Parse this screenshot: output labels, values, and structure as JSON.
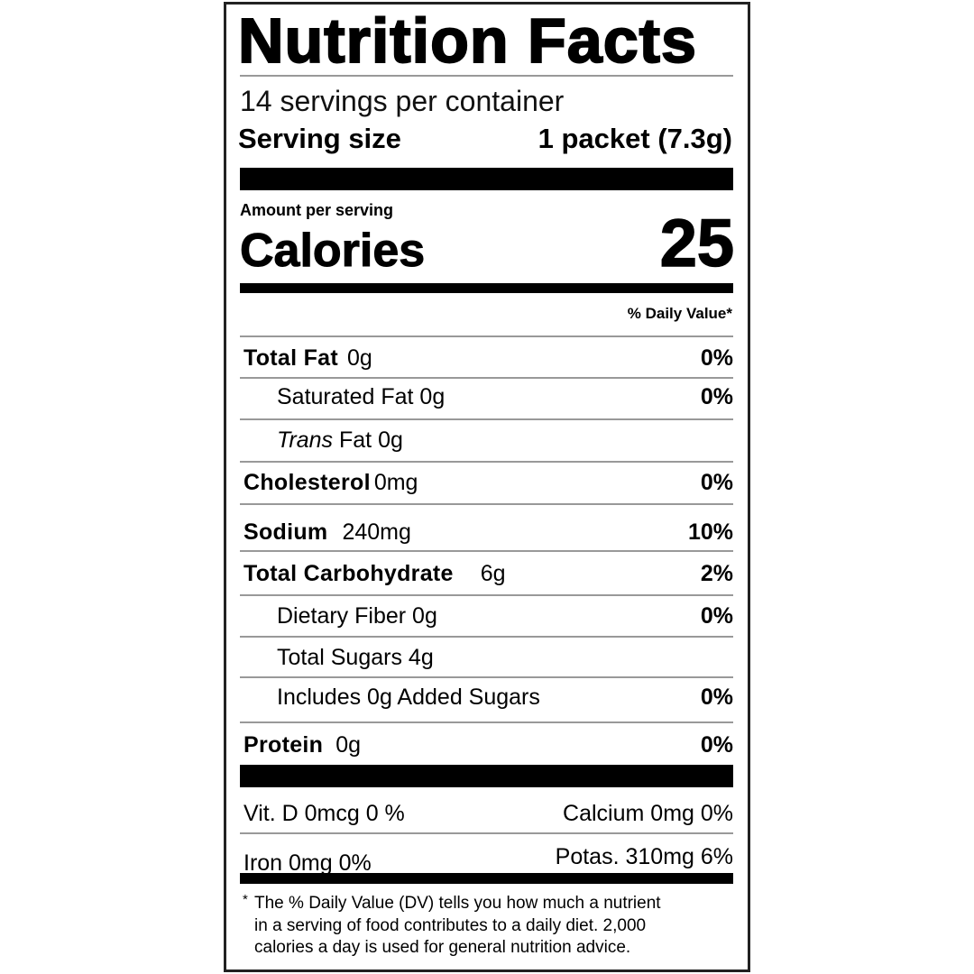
{
  "title": "Nutrition Facts",
  "servings_per_container": "14 servings per container",
  "serving_size": {
    "label": "Serving size",
    "value": "1 packet (7.3g)"
  },
  "amount_per_serving": "Amount per serving",
  "calories": {
    "label": "Calories",
    "value": "25"
  },
  "daily_value_header": "% Daily Value*",
  "nutrients": [
    {
      "name": "Total Fat",
      "amount": "0g",
      "dv": "0%"
    },
    {
      "name": "Saturated Fat 0g",
      "amount": "",
      "dv": "0%"
    },
    {
      "name_italic": "Trans",
      "name": " Fat 0g",
      "dv": ""
    },
    {
      "name": "Cholesterol",
      "amount": "0mg",
      "dv": "0%"
    },
    {
      "name": "Sodium",
      "amount": "240mg",
      "dv": "10%"
    },
    {
      "name": "Total Carbohydrate",
      "amount": "6g",
      "dv": "2%"
    },
    {
      "name": "Dietary Fiber 0g",
      "amount": "",
      "dv": "0%"
    },
    {
      "name": "Total Sugars 4g",
      "amount": "",
      "dv": ""
    },
    {
      "name": "Includes 0g Added Sugars",
      "amount": "",
      "dv": "0%"
    },
    {
      "name": "Protein",
      "amount": "0g",
      "dv": "0%"
    }
  ],
  "vitamins": [
    {
      "left": "Vit. D 0mcg 0 %",
      "right": "Calcium 0mg 0%"
    },
    {
      "left": "Iron 0mg 0%",
      "right": "Potas. 310mg 6%"
    }
  ],
  "footnote": {
    "mark": "*",
    "lines": [
      "The % Daily Value (DV) tells you how much a nutrient",
      "in a serving of food contributes to a daily diet. 2,000",
      "calories a day is used for general nutrition advice."
    ]
  }
}
